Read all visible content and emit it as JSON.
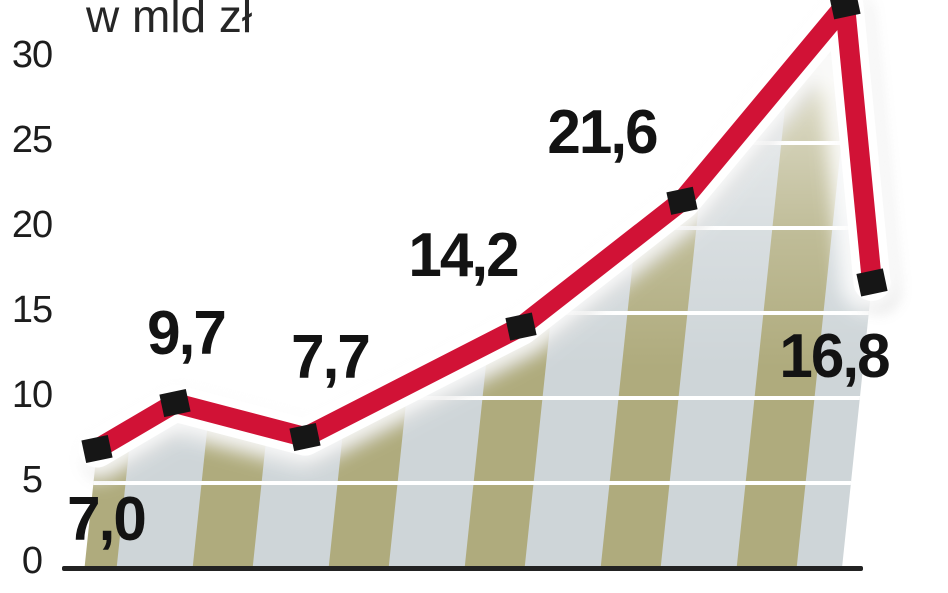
{
  "chart_data": {
    "type": "line",
    "title": "w mld zł",
    "ylabel": "w mld zł",
    "xlabel": "",
    "ylim": [
      0,
      33.5
    ],
    "yticks": [
      "0",
      "5",
      "10",
      "15",
      "20",
      "25",
      "30"
    ],
    "grid": true,
    "legend": false,
    "series": [
      {
        "name": "",
        "values": [
          7.0,
          9.7,
          7.7,
          14.2,
          21.6,
          33.1,
          16.8
        ],
        "point_labels": [
          "7,0",
          "9,7",
          "7,7",
          "14,2",
          "21,6",
          "",
          "16,8"
        ],
        "peak_label_visible": false,
        "color": "#d11236"
      }
    ]
  },
  "colors": {
    "line_red": "#d11236",
    "line_outline": "#ffffff",
    "marker_black": "#161616",
    "stripe_khaki": "#afab7d",
    "stripe_light": "#ced5d8",
    "gridline_white": "#ffffff",
    "axis_black": "#222222",
    "text_dark": "#1d1d1d"
  }
}
